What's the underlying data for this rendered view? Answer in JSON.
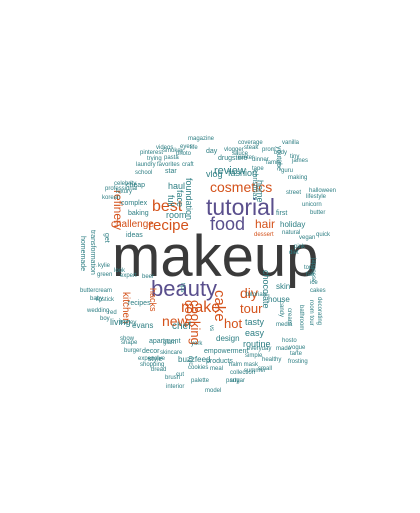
{
  "palette": {
    "main": "#3a3a3a",
    "orange": "#d4521b",
    "purple": "#5a4f8d",
    "teal": "#2f7f84",
    "green": "#3f8a3f",
    "gray": "#6b6b6b"
  },
  "words": [
    {
      "text": "makeup",
      "color": "main"
    },
    {
      "text": "tutorial",
      "color": "purple"
    },
    {
      "text": "beauty",
      "color": "purple"
    },
    {
      "text": "food",
      "color": "purple"
    },
    {
      "text": "recipe",
      "color": "orange"
    },
    {
      "text": "best",
      "color": "orange"
    },
    {
      "text": "cosmetics",
      "color": "orange"
    },
    {
      "text": "hair",
      "color": "orange"
    },
    {
      "text": "review",
      "color": "teal"
    },
    {
      "text": "challenge",
      "color": "orange"
    },
    {
      "text": "make",
      "color": "orange"
    },
    {
      "text": "new",
      "color": "orange"
    },
    {
      "text": "cake",
      "color": "orange"
    },
    {
      "text": "diy",
      "color": "orange"
    },
    {
      "text": "tour",
      "color": "orange"
    },
    {
      "text": "cook",
      "color": "orange"
    },
    {
      "text": "cooking",
      "color": "orange"
    },
    {
      "text": "chef",
      "color": "teal"
    },
    {
      "text": "hot",
      "color": "orange"
    },
    {
      "text": "refinery",
      "color": "orange"
    },
    {
      "text": "room",
      "color": "teal"
    },
    {
      "text": "fashion",
      "color": "teal"
    },
    {
      "text": "vlog",
      "color": "teal"
    },
    {
      "text": "haul",
      "color": "teal"
    },
    {
      "text": "face",
      "color": "teal"
    },
    {
      "text": "full",
      "color": "teal"
    },
    {
      "text": "foundation",
      "color": "teal"
    },
    {
      "text": "chocolate",
      "color": "teal"
    },
    {
      "text": "home",
      "color": "teal"
    },
    {
      "text": "holiday",
      "color": "teal"
    },
    {
      "text": "kitchen",
      "color": "orange"
    },
    {
      "text": "hacks",
      "color": "orange"
    },
    {
      "text": "living",
      "color": "teal"
    },
    {
      "text": "evans",
      "color": "teal"
    },
    {
      "text": "tasty",
      "color": "teal"
    },
    {
      "text": "easy",
      "color": "teal"
    },
    {
      "text": "routine",
      "color": "teal"
    },
    {
      "text": "design",
      "color": "teal"
    },
    {
      "text": "buzzfeed",
      "color": "teal"
    },
    {
      "text": "house",
      "color": "teal"
    },
    {
      "text": "skin",
      "color": "teal"
    },
    {
      "text": "style",
      "color": "teal"
    },
    {
      "text": "products",
      "color": "teal"
    },
    {
      "text": "empowerment",
      "color": "teal"
    },
    {
      "text": "decor",
      "color": "teal"
    },
    {
      "text": "apartment",
      "color": "teal"
    },
    {
      "text": "recipes",
      "color": "teal"
    },
    {
      "text": "cheap",
      "color": "teal"
    },
    {
      "text": "complex",
      "color": "teal"
    },
    {
      "text": "drugstore",
      "color": "teal"
    },
    {
      "text": "first",
      "color": "teal"
    },
    {
      "text": "star",
      "color": "teal"
    },
    {
      "text": "get",
      "color": "teal"
    },
    {
      "text": "transformation",
      "color": "teal"
    },
    {
      "text": "homemade",
      "color": "teal"
    },
    {
      "text": "baking",
      "color": "teal"
    },
    {
      "text": "christmas",
      "color": "teal"
    },
    {
      "text": "ideas",
      "color": "teal"
    },
    {
      "text": "youtube",
      "color": "teal"
    },
    {
      "text": "day",
      "color": "teal"
    },
    {
      "text": "making",
      "color": "teal"
    },
    {
      "text": "dessert",
      "color": "orange"
    },
    {
      "text": "natural",
      "color": "teal"
    },
    {
      "text": "media",
      "color": "teal"
    },
    {
      "text": "tutorials",
      "color": "teal"
    },
    {
      "text": "candy",
      "color": "teal"
    },
    {
      "text": "cream",
      "color": "teal"
    },
    {
      "text": "everyday",
      "color": "teal"
    },
    {
      "text": "simple",
      "color": "teal"
    },
    {
      "text": "hosto",
      "color": "teal"
    },
    {
      "text": "made",
      "color": "teal"
    },
    {
      "text": "halm mask",
      "color": "teal"
    },
    {
      "text": "collection",
      "color": "teal"
    },
    {
      "text": "cookies",
      "color": "teal"
    },
    {
      "text": "skincare",
      "color": "teal"
    },
    {
      "text": "expensive",
      "color": "teal"
    },
    {
      "text": "shape",
      "color": "teal"
    },
    {
      "text": "burger",
      "color": "teal"
    },
    {
      "text": "show",
      "color": "teal"
    },
    {
      "text": "lipstick",
      "color": "teal"
    },
    {
      "text": "wedding",
      "color": "teal"
    },
    {
      "text": "honey",
      "color": "teal"
    },
    {
      "text": "buttercream",
      "color": "teal"
    },
    {
      "text": "celebrity",
      "color": "teal"
    },
    {
      "text": "korean",
      "color": "teal"
    },
    {
      "text": "professional",
      "color": "teal"
    },
    {
      "text": "luxury",
      "color": "teal"
    },
    {
      "text": "laundry",
      "color": "teal"
    },
    {
      "text": "school",
      "color": "teal"
    },
    {
      "text": "favorites",
      "color": "teal"
    },
    {
      "text": "pasta",
      "color": "teal"
    },
    {
      "text": "videos",
      "color": "teal"
    },
    {
      "text": "magazine",
      "color": "teal"
    },
    {
      "text": "coverage",
      "color": "teal"
    },
    {
      "text": "vlogger",
      "color": "teal"
    },
    {
      "text": "winter",
      "color": "teal"
    },
    {
      "text": "sauce",
      "color": "teal"
    },
    {
      "text": "steak",
      "color": "teal"
    },
    {
      "text": "vanilla",
      "color": "teal"
    },
    {
      "text": "james",
      "color": "teal"
    },
    {
      "text": "tiny",
      "color": "teal"
    },
    {
      "text": "guru",
      "color": "teal"
    },
    {
      "text": "lifestyle",
      "color": "teal"
    },
    {
      "text": "unicorn",
      "color": "teal"
    },
    {
      "text": "halloween",
      "color": "teal"
    },
    {
      "text": "butter",
      "color": "teal"
    },
    {
      "text": "quick",
      "color": "teal"
    },
    {
      "text": "japanese",
      "color": "teal"
    },
    {
      "text": "ice",
      "color": "teal"
    },
    {
      "text": "cakes",
      "color": "teal"
    },
    {
      "text": "room tour",
      "color": "teal"
    },
    {
      "text": "bathroom",
      "color": "teal"
    },
    {
      "text": "decorating",
      "color": "teal"
    },
    {
      "text": "vogue",
      "color": "teal"
    },
    {
      "text": "frosting",
      "color": "teal"
    },
    {
      "text": "tarte",
      "color": "teal"
    },
    {
      "text": "vs",
      "color": "teal"
    },
    {
      "text": "york",
      "color": "teal"
    },
    {
      "text": "glam",
      "color": "teal"
    },
    {
      "text": "nyc",
      "color": "teal"
    },
    {
      "text": "interior",
      "color": "teal"
    },
    {
      "text": "palette",
      "color": "teal"
    },
    {
      "text": "model",
      "color": "teal"
    },
    {
      "text": "tips",
      "color": "teal"
    },
    {
      "text": "look",
      "color": "teal"
    },
    {
      "text": "kylie",
      "color": "teal"
    },
    {
      "text": "baby",
      "color": "teal"
    },
    {
      "text": "green",
      "color": "teal"
    },
    {
      "text": "meal",
      "color": "teal"
    },
    {
      "text": "sugar",
      "color": "teal"
    },
    {
      "text": "beer",
      "color": "teal"
    },
    {
      "text": "craft",
      "color": "teal"
    },
    {
      "text": "life",
      "color": "teal"
    },
    {
      "text": "expert",
      "color": "teal"
    },
    {
      "text": "trying",
      "color": "teal"
    },
    {
      "text": "pinterest",
      "color": "teal"
    },
    {
      "text": "smokey",
      "color": "teal"
    },
    {
      "text": "photo",
      "color": "teal"
    },
    {
      "text": "tape",
      "color": "teal"
    },
    {
      "text": "dinner",
      "color": "teal"
    },
    {
      "text": "prom",
      "color": "teal"
    },
    {
      "text": "family",
      "color": "teal"
    },
    {
      "text": "body",
      "color": "teal"
    },
    {
      "text": "street",
      "color": "teal"
    },
    {
      "text": "summer",
      "color": "teal"
    },
    {
      "text": "small",
      "color": "teal"
    },
    {
      "text": "healthy",
      "color": "teal"
    },
    {
      "text": "bread",
      "color": "teal"
    },
    {
      "text": "brush",
      "color": "teal"
    },
    {
      "text": "shopping",
      "color": "teal"
    },
    {
      "text": "cut",
      "color": "teal"
    },
    {
      "text": "red",
      "color": "teal"
    },
    {
      "text": "boy",
      "color": "teal"
    },
    {
      "text": "top",
      "color": "teal"
    },
    {
      "text": "fall",
      "color": "teal"
    },
    {
      "text": "vegan",
      "color": "teal"
    },
    {
      "text": "pink",
      "color": "teal"
    },
    {
      "text": "diet",
      "color": "teal"
    },
    {
      "text": "party",
      "color": "teal"
    },
    {
      "text": "eyes",
      "color": "teal"
    },
    {
      "text": "week",
      "color": "teal"
    },
    {
      "text": "art",
      "color": "teal"
    },
    {
      "text": "gold",
      "color": "teal"
    }
  ]
}
